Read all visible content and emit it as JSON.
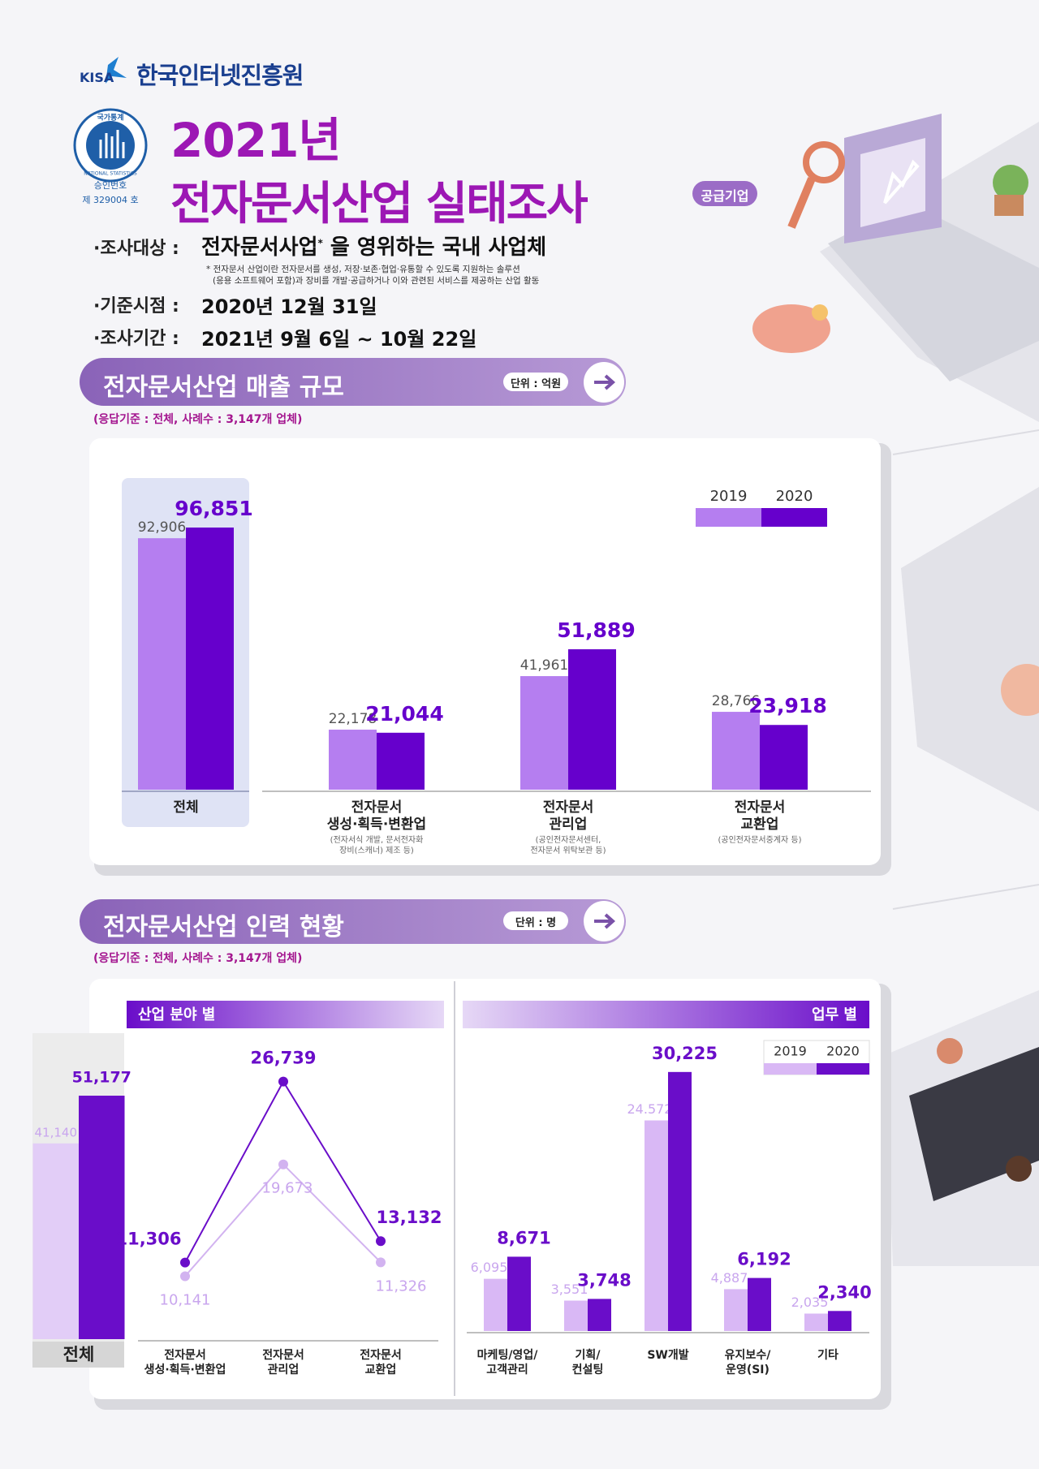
{
  "header": {
    "kisa": "KISA",
    "org": "한국인터넷진흥원",
    "badge_top": "국가통계",
    "badge_ring": "NATIONAL STATISTICS",
    "approval_label": "승인번호",
    "approval_no": "제 329004 호",
    "year": "2021년",
    "title": "전자문서산업 실태조사",
    "tag": "공급기업"
  },
  "info": [
    {
      "label": "·조사대상 :",
      "value": "전자문서사업",
      "sup": "*",
      "rest": "을 영위하는 국내 사업체",
      "notes": [
        "* 전자문서 산업이란 전자문서를 생성, 저장·보존·협업·유통할 수 있도록 지원하는 솔루션",
        "(응용 소프트웨어 포함)과 장비를 개발·공급하거나 이와 관련된 서비스를 제공하는 산업 활동"
      ]
    },
    {
      "label": "·기준시점 :",
      "value": "2020년 12월 31일"
    },
    {
      "label": "·조사기간 :",
      "value": "2021년 9월 6일 ~ 10월 22일"
    }
  ],
  "sections": [
    {
      "title": "전자문서산업 매출 규모",
      "unit": "단위 : 억원",
      "basis": "(응답기준 : 전체, 사례수 : 3,147개 업체)"
    },
    {
      "title": "전자문서산업 인력 현황",
      "unit": "단위 : 명",
      "basis": "(응답기준 : 전체, 사례수 : 3,147개 업체)"
    }
  ],
  "chart_data": [
    {
      "type": "bar",
      "categories": [
        "전체",
        "전자문서\n생성·획득·변환업",
        "전자문서\n관리업",
        "전자문서\n교환업"
      ],
      "category_notes": [
        null,
        "(전자서식 개발, 문서전자화\n장비(스캐너) 제조 등)",
        "(공인전자문서센터,\n전자문서 위탁보관 등)",
        "(공인전자문서중계자 등)"
      ],
      "series": [
        {
          "name": "2019",
          "color": "#b57ef0",
          "values": [
            92906,
            22178,
            41961,
            28766
          ],
          "value_labels": [
            "92,906",
            "22,178",
            "41,961",
            "28,766"
          ]
        },
        {
          "name": "2020",
          "color": "#6600cc",
          "values": [
            96851,
            21044,
            51889,
            23918
          ],
          "value_labels": [
            "96,851",
            "21,044",
            "51,889",
            "23,918"
          ]
        }
      ],
      "ylim": [
        0,
        100000
      ],
      "legend": "upper right"
    },
    {
      "type": "bar",
      "categories": [
        "전체"
      ],
      "series": [
        {
          "name": "2019",
          "color": "#e2cdf7",
          "values": [
            41140
          ],
          "value_labels": [
            "41,140"
          ]
        },
        {
          "name": "2020",
          "color": "#6a0dc9",
          "values": [
            51177
          ],
          "value_labels": [
            "51,177"
          ]
        }
      ],
      "ylim": [
        0,
        60000
      ]
    },
    {
      "type": "line",
      "title": "산업 분야 별",
      "categories": [
        "전자문서\n생성·획득·변환업",
        "전자문서\n관리업",
        "전자문서\n교환업"
      ],
      "series": [
        {
          "name": "2019",
          "color": "#d2b3f0",
          "values": [
            10141,
            19673,
            11326
          ],
          "value_labels": [
            "10,141",
            "19,673",
            "11,326"
          ]
        },
        {
          "name": "2020",
          "color": "#6a0dc9",
          "values": [
            11306,
            26739,
            13132
          ],
          "value_labels": [
            "11,306",
            "26,739",
            "13,132"
          ]
        }
      ],
      "ylim": [
        0,
        30000
      ]
    },
    {
      "type": "bar",
      "title": "업무 별",
      "categories": [
        "마케팅/영업/\n고객관리",
        "기획/\n컨설팅",
        "SW개발",
        "유지보수/\n운영(SI)",
        "기타"
      ],
      "series": [
        {
          "name": "2019",
          "color": "#d9b8f5",
          "values": [
            6095,
            3551,
            24572,
            4887,
            2035
          ],
          "value_labels": [
            "6,095",
            "3,551",
            "24.572",
            "4,887",
            "2,035"
          ]
        },
        {
          "name": "2020",
          "color": "#6a0dc9",
          "values": [
            8671,
            3748,
            30225,
            6192,
            2340
          ],
          "value_labels": [
            "8,671",
            "3,748",
            "30,225",
            "6,192",
            "2,340"
          ]
        }
      ],
      "ylim": [
        0,
        35000
      ],
      "legend": "upper right"
    }
  ]
}
